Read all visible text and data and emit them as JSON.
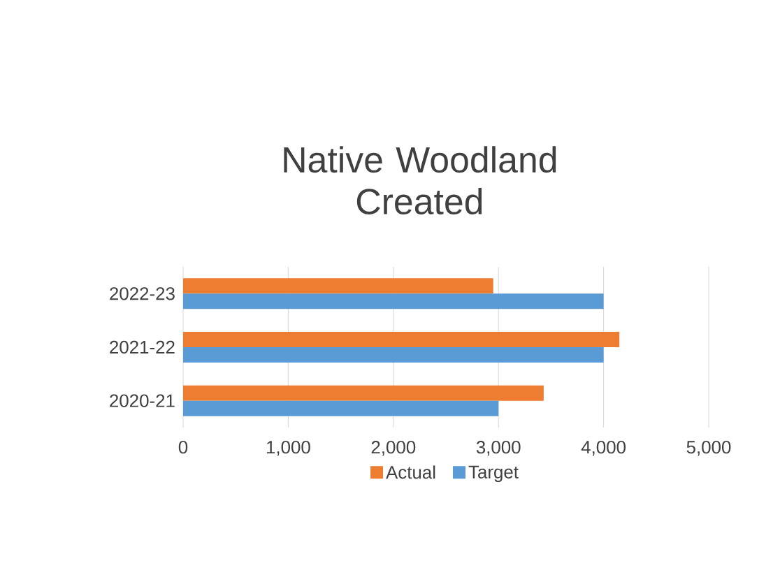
{
  "chart_data": {
    "type": "bar",
    "orientation": "horizontal",
    "title": "Native Woodland Created",
    "categories": [
      "2022-23",
      "2021-22",
      "2020-21"
    ],
    "series": [
      {
        "name": "Actual",
        "color": "#ed7d31",
        "values": [
          2950,
          4150,
          3430
        ]
      },
      {
        "name": "Target",
        "color": "#5b9bd5",
        "values": [
          4000,
          4000,
          3000
        ]
      }
    ],
    "xlim": [
      0,
      5000
    ],
    "xticks": [
      0,
      {
        "value": 1000,
        "label": "1,000"
      },
      {
        "value": 2000,
        "label": "2,000"
      },
      {
        "value": 3000,
        "label": "3,000"
      },
      {
        "value": 4000,
        "label": "4,000"
      },
      {
        "value": 5000,
        "label": "5,000"
      }
    ],
    "grid": "x",
    "legend": "bottom"
  }
}
